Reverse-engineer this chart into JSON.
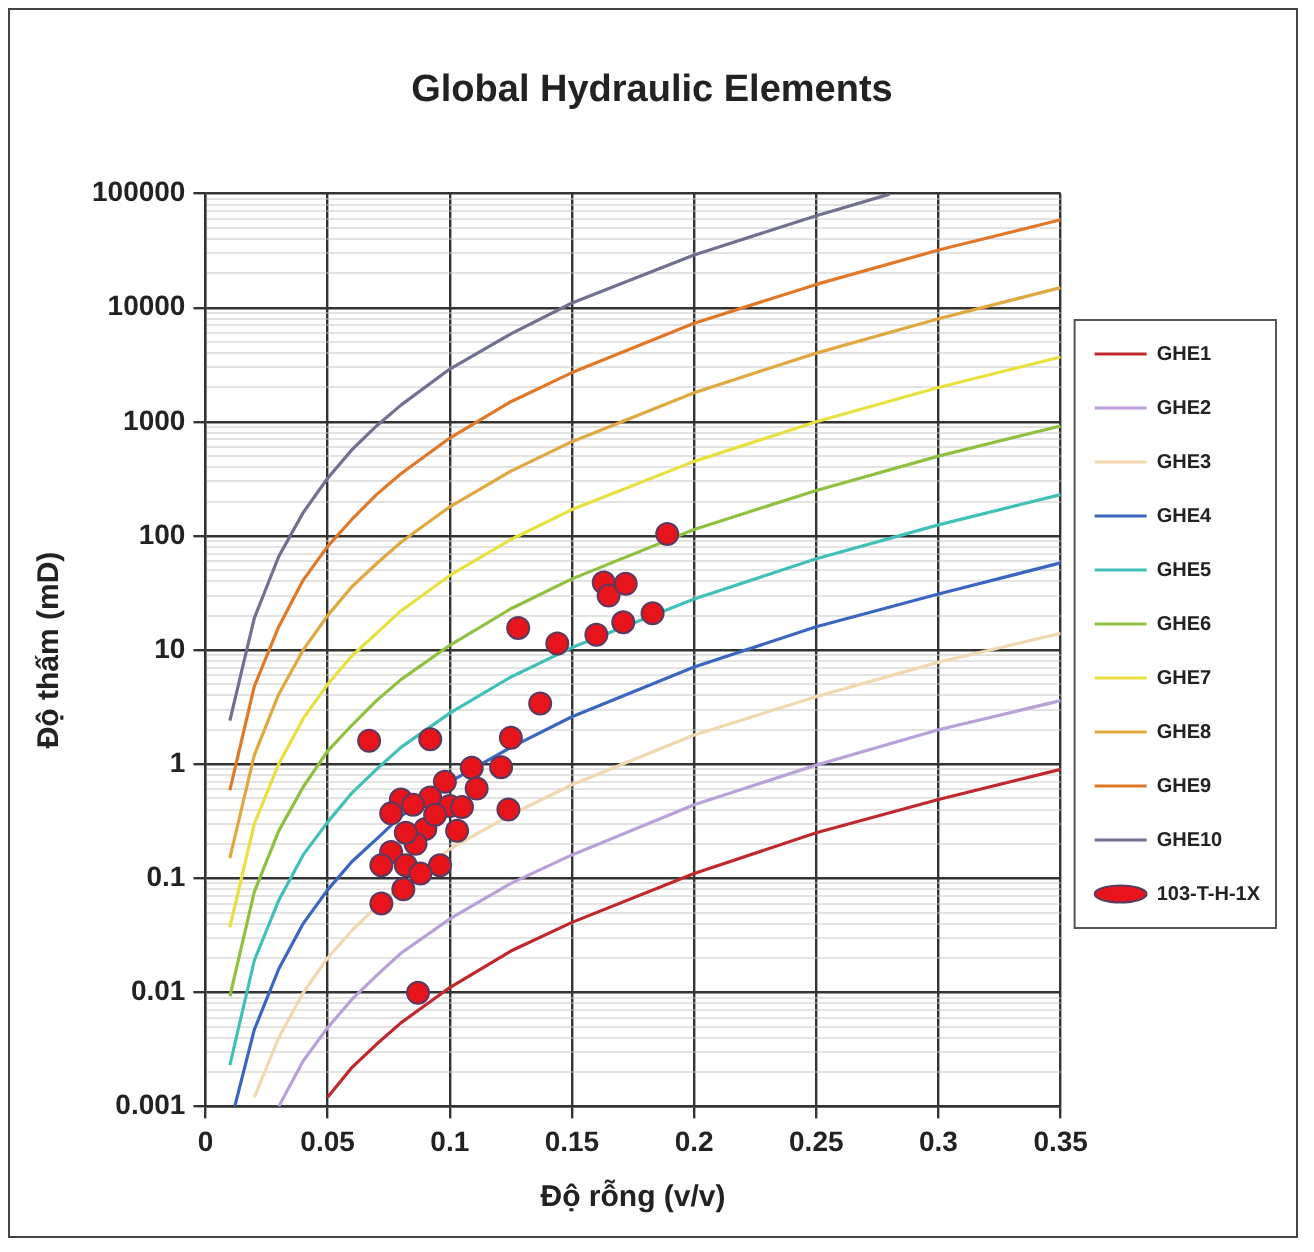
{
  "chart_data": {
    "type": "line",
    "title": "Global Hydraulic Elements",
    "xlabel": "Độ rỗng (v/v)",
    "ylabel": "Độ thấm (mD)",
    "xlim": [
      0,
      0.35
    ],
    "xticks": [
      0,
      0.05,
      0.1,
      0.15,
      0.2,
      0.25,
      0.3,
      0.35
    ],
    "ylim": [
      0.001,
      100000
    ],
    "yticks": [
      0.001,
      {
        "value": 0.002,
        "label": null
      },
      {
        "value": 0.003,
        "label": null
      },
      {
        "value": 0.004,
        "label": null
      },
      {
        "value": 0.005,
        "label": null
      },
      {
        "value": 0.006,
        "label": null
      },
      {
        "value": 0.007,
        "label": null
      },
      {
        "value": 0.008,
        "label": null
      },
      {
        "value": 0.009,
        "label": null
      },
      0.01,
      {
        "value": 0.02,
        "label": null
      },
      {
        "value": 0.03,
        "label": null
      },
      {
        "value": 0.04,
        "label": null
      },
      {
        "value": 0.05,
        "label": null
      },
      {
        "value": 0.06,
        "label": null
      },
      {
        "value": 0.07,
        "label": null
      },
      {
        "value": 0.08,
        "label": null
      },
      {
        "value": 0.09,
        "label": null
      },
      0.1,
      {
        "value": 0.2,
        "label": null
      },
      {
        "value": 0.3,
        "label": null
      },
      {
        "value": 0.4,
        "label": null
      },
      {
        "value": 0.5,
        "label": null
      },
      {
        "value": 0.6,
        "label": null
      },
      {
        "value": 0.7,
        "label": null
      },
      {
        "value": 0.8,
        "label": null
      },
      {
        "value": 0.9,
        "label": null
      },
      1,
      {
        "value": 2,
        "label": null
      },
      {
        "value": 3,
        "label": null
      },
      {
        "value": 4,
        "label": null
      },
      {
        "value": 5,
        "label": null
      },
      {
        "value": 6,
        "label": null
      },
      {
        "value": 7,
        "label": null
      },
      {
        "value": 8,
        "label": null
      },
      {
        "value": 9,
        "label": null
      },
      10,
      {
        "value": 20,
        "label": null
      },
      {
        "value": 30,
        "label": null
      },
      {
        "value": 40,
        "label": null
      },
      {
        "value": 50,
        "label": null
      },
      {
        "value": 60,
        "label": null
      },
      {
        "value": 70,
        "label": null
      },
      {
        "value": 80,
        "label": null
      },
      {
        "value": 90,
        "label": null
      },
      100,
      {
        "value": 200,
        "label": null
      },
      {
        "value": 300,
        "label": null
      },
      {
        "value": 400,
        "label": null
      },
      {
        "value": 500,
        "label": null
      },
      {
        "value": 600,
        "label": null
      },
      {
        "value": 700,
        "label": null
      },
      {
        "value": 800,
        "label": null
      },
      {
        "value": 900,
        "label": null
      },
      1000,
      {
        "value": 2000,
        "label": null
      },
      {
        "value": 3000,
        "label": null
      },
      {
        "value": 4000,
        "label": null
      },
      {
        "value": 5000,
        "label": null
      },
      {
        "value": 6000,
        "label": null
      },
      {
        "value": 7000,
        "label": null
      },
      {
        "value": 8000,
        "label": null
      },
      {
        "value": 9000,
        "label": null
      },
      10000,
      {
        "value": 20000,
        "label": null
      },
      {
        "value": 30000,
        "label": null
      },
      {
        "value": 40000,
        "label": null
      },
      {
        "value": 50000,
        "label": null
      },
      {
        "value": 60000,
        "label": null
      },
      {
        "value": 70000,
        "label": null
      },
      {
        "value": 80000,
        "label": null
      },
      {
        "value": 90000,
        "label": null
      },
      100000
    ],
    "log": "y",
    "grid": true,
    "legend": "right",
    "series": [
      {
        "name": "GHE1",
        "type": "line",
        "marker": "none",
        "color": "#c0282d",
        "x": [
          0.05,
          0.06,
          0.07,
          0.08,
          0.1,
          0.125,
          0.15,
          0.2,
          0.25,
          0.3,
          0.35
        ],
        "values": [
          0.0012,
          0.0022,
          0.0035,
          0.0054,
          0.011,
          0.023,
          0.041,
          0.11,
          0.25,
          0.49,
          0.9
        ]
      },
      {
        "name": "GHE2",
        "type": "line",
        "marker": "none",
        "color": "#b8a0d8",
        "x": [
          0.03,
          0.04,
          0.05,
          0.06,
          0.07,
          0.08,
          0.1,
          0.125,
          0.15,
          0.2,
          0.25,
          0.3,
          0.35
        ],
        "values": [
          0.001,
          0.0025,
          0.0049,
          0.0087,
          0.014,
          0.022,
          0.044,
          0.09,
          0.16,
          0.44,
          0.98,
          2.0,
          3.6
        ]
      },
      {
        "name": "GHE3",
        "type": "line",
        "marker": "none",
        "color": "#f0d8b0",
        "x": [
          0.02,
          0.03,
          0.04,
          0.05,
          0.06,
          0.07,
          0.08,
          0.1,
          0.125,
          0.15,
          0.2,
          0.25,
          0.3,
          0.35
        ],
        "values": [
          0.0012,
          0.004,
          0.0099,
          0.02,
          0.035,
          0.056,
          0.086,
          0.18,
          0.36,
          0.66,
          1.8,
          3.9,
          7.8,
          14
        ]
      },
      {
        "name": "GHE4",
        "type": "line",
        "marker": "none",
        "color": "#3a66c0",
        "x": [
          0.012,
          0.02,
          0.03,
          0.04,
          0.05,
          0.06,
          0.07,
          0.08,
          0.1,
          0.125,
          0.15,
          0.2,
          0.25,
          0.3,
          0.35
        ],
        "values": [
          0.001,
          0.0047,
          0.016,
          0.04,
          0.079,
          0.14,
          0.22,
          0.35,
          0.7,
          1.4,
          2.6,
          7.1,
          16,
          31,
          58
        ]
      },
      {
        "name": "GHE5",
        "type": "line",
        "marker": "none",
        "color": "#40c0b8",
        "x": [
          0.01,
          0.02,
          0.03,
          0.04,
          0.05,
          0.06,
          0.07,
          0.08,
          0.1,
          0.125,
          0.15,
          0.2,
          0.25,
          0.3,
          0.35
        ],
        "values": [
          0.0023,
          0.019,
          0.064,
          0.16,
          0.31,
          0.56,
          0.9,
          1.4,
          2.8,
          5.8,
          10.5,
          28,
          63,
          125,
          230
        ]
      },
      {
        "name": "GHE6",
        "type": "line",
        "marker": "none",
        "color": "#90c040",
        "x": [
          0.01,
          0.02,
          0.03,
          0.04,
          0.05,
          0.06,
          0.07,
          0.08,
          0.1,
          0.125,
          0.15,
          0.2,
          0.25,
          0.3,
          0.35
        ],
        "values": [
          0.0092,
          0.076,
          0.26,
          0.63,
          1.3,
          2.2,
          3.6,
          5.5,
          11,
          23,
          42,
          114,
          250,
          500,
          920
        ]
      },
      {
        "name": "GHE7",
        "type": "line",
        "marker": "none",
        "color": "#e8e040",
        "x": [
          0.01,
          0.02,
          0.03,
          0.04,
          0.05,
          0.06,
          0.07,
          0.08,
          0.1,
          0.125,
          0.15,
          0.2,
          0.25,
          0.3,
          0.35
        ],
        "values": [
          0.037,
          0.3,
          1.0,
          2.5,
          5.0,
          8.9,
          14,
          22,
          45,
          93,
          170,
          450,
          1000,
          2000,
          3700
        ]
      },
      {
        "name": "GHE8",
        "type": "line",
        "marker": "none",
        "color": "#e0a840",
        "x": [
          0.01,
          0.02,
          0.03,
          0.04,
          0.05,
          0.06,
          0.07,
          0.08,
          0.1,
          0.125,
          0.15,
          0.2,
          0.25,
          0.3,
          0.35
        ],
        "values": [
          0.15,
          1.2,
          4.1,
          10,
          20,
          36,
          57,
          88,
          180,
          370,
          670,
          1800,
          4000,
          8000,
          15000
        ]
      },
      {
        "name": "GHE9",
        "type": "line",
        "marker": "none",
        "color": "#e07828",
        "x": [
          0.01,
          0.02,
          0.03,
          0.04,
          0.05,
          0.06,
          0.07,
          0.08,
          0.1,
          0.125,
          0.15,
          0.2,
          0.25,
          0.3,
          0.35
        ],
        "values": [
          0.59,
          4.8,
          16,
          41,
          81,
          140,
          230,
          350,
          720,
          1500,
          2700,
          7300,
          16000,
          32000,
          59000
        ]
      },
      {
        "name": "GHE10",
        "type": "line",
        "marker": "none",
        "color": "#707090",
        "x": [
          0.01,
          0.02,
          0.03,
          0.04,
          0.05,
          0.06,
          0.07,
          0.08,
          0.1,
          0.125,
          0.15,
          0.2,
          0.25,
          0.28
        ],
        "values": [
          2.4,
          19,
          66,
          160,
          320,
          570,
          920,
          1400,
          2900,
          5900,
          11000,
          29000,
          64000,
          99000
        ]
      },
      {
        "name": "103-T-H-1X",
        "type": "scatter",
        "marker": "circle",
        "color": "#e8141c",
        "x": [
          0.189,
          0.163,
          0.165,
          0.172,
          0.171,
          0.183,
          0.16,
          0.144,
          0.128,
          0.137,
          0.125,
          0.067,
          0.092,
          0.109,
          0.121,
          0.124,
          0.111,
          0.098,
          0.103,
          0.092,
          0.1,
          0.08,
          0.076,
          0.085,
          0.09,
          0.086,
          0.076,
          0.096,
          0.082,
          0.072,
          0.088,
          0.081,
          0.072,
          0.087,
          0.105,
          0.094,
          0.082
        ],
        "values": [
          104,
          39,
          30,
          38,
          17.5,
          21,
          13.6,
          11.4,
          15.6,
          3.4,
          1.7,
          1.6,
          1.65,
          0.93,
          0.94,
          0.4,
          0.61,
          0.7,
          0.26,
          0.51,
          0.43,
          0.49,
          0.37,
          0.44,
          0.27,
          0.2,
          0.17,
          0.13,
          0.13,
          0.13,
          0.11,
          0.08,
          0.06,
          0.0099,
          0.42,
          0.36,
          0.25
        ]
      }
    ]
  }
}
